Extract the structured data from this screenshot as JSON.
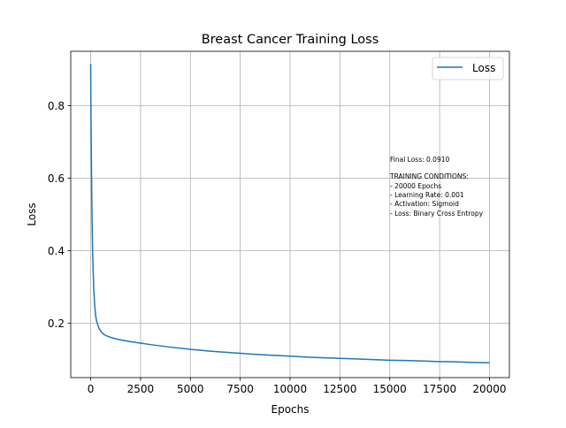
{
  "chart_data": {
    "type": "line",
    "title": "Breast Cancer Training Loss",
    "xlabel": "Epochs",
    "ylabel": "Loss",
    "xlim": [
      -1000,
      21000
    ],
    "ylim": [
      0.05,
      0.95
    ],
    "xticks": [
      0,
      2500,
      5000,
      7500,
      10000,
      12500,
      15000,
      17500,
      20000
    ],
    "yticks": [
      0.2,
      0.4,
      0.6,
      0.8
    ],
    "grid": true,
    "legend_placement": "top-right",
    "series": [
      {
        "name": "Loss",
        "color": "#1f77b4",
        "x": [
          0,
          10,
          20,
          40,
          60,
          80,
          100,
          150,
          200,
          250,
          300,
          400,
          500,
          600,
          700,
          800,
          1000,
          1250,
          1500,
          2000,
          2500,
          3000,
          4000,
          5000,
          6000,
          7000,
          7500,
          8000,
          9000,
          10000,
          11000,
          12000,
          12500,
          13000,
          14000,
          15000,
          16000,
          17000,
          17500,
          18000,
          19000,
          20000
        ],
        "y": [
          0.915,
          0.82,
          0.74,
          0.62,
          0.52,
          0.45,
          0.39,
          0.3,
          0.25,
          0.22,
          0.205,
          0.188,
          0.178,
          0.172,
          0.168,
          0.165,
          0.161,
          0.157,
          0.154,
          0.149,
          0.145,
          0.141,
          0.134,
          0.128,
          0.123,
          0.119,
          0.117,
          0.115,
          0.112,
          0.109,
          0.106,
          0.104,
          0.103,
          0.102,
          0.1,
          0.098,
          0.097,
          0.095,
          0.094,
          0.094,
          0.092,
          0.091
        ]
      }
    ],
    "annotation": {
      "final_loss": "Final Loss: 0.0910",
      "conditions_header": "TRAINING CONDITIONS:",
      "conditions": [
        "- 20000 Epochs",
        "- Learning Rate: 0.001",
        "- Activation: Sigmoid",
        "- Loss: Binary Cross Entropy"
      ]
    }
  }
}
